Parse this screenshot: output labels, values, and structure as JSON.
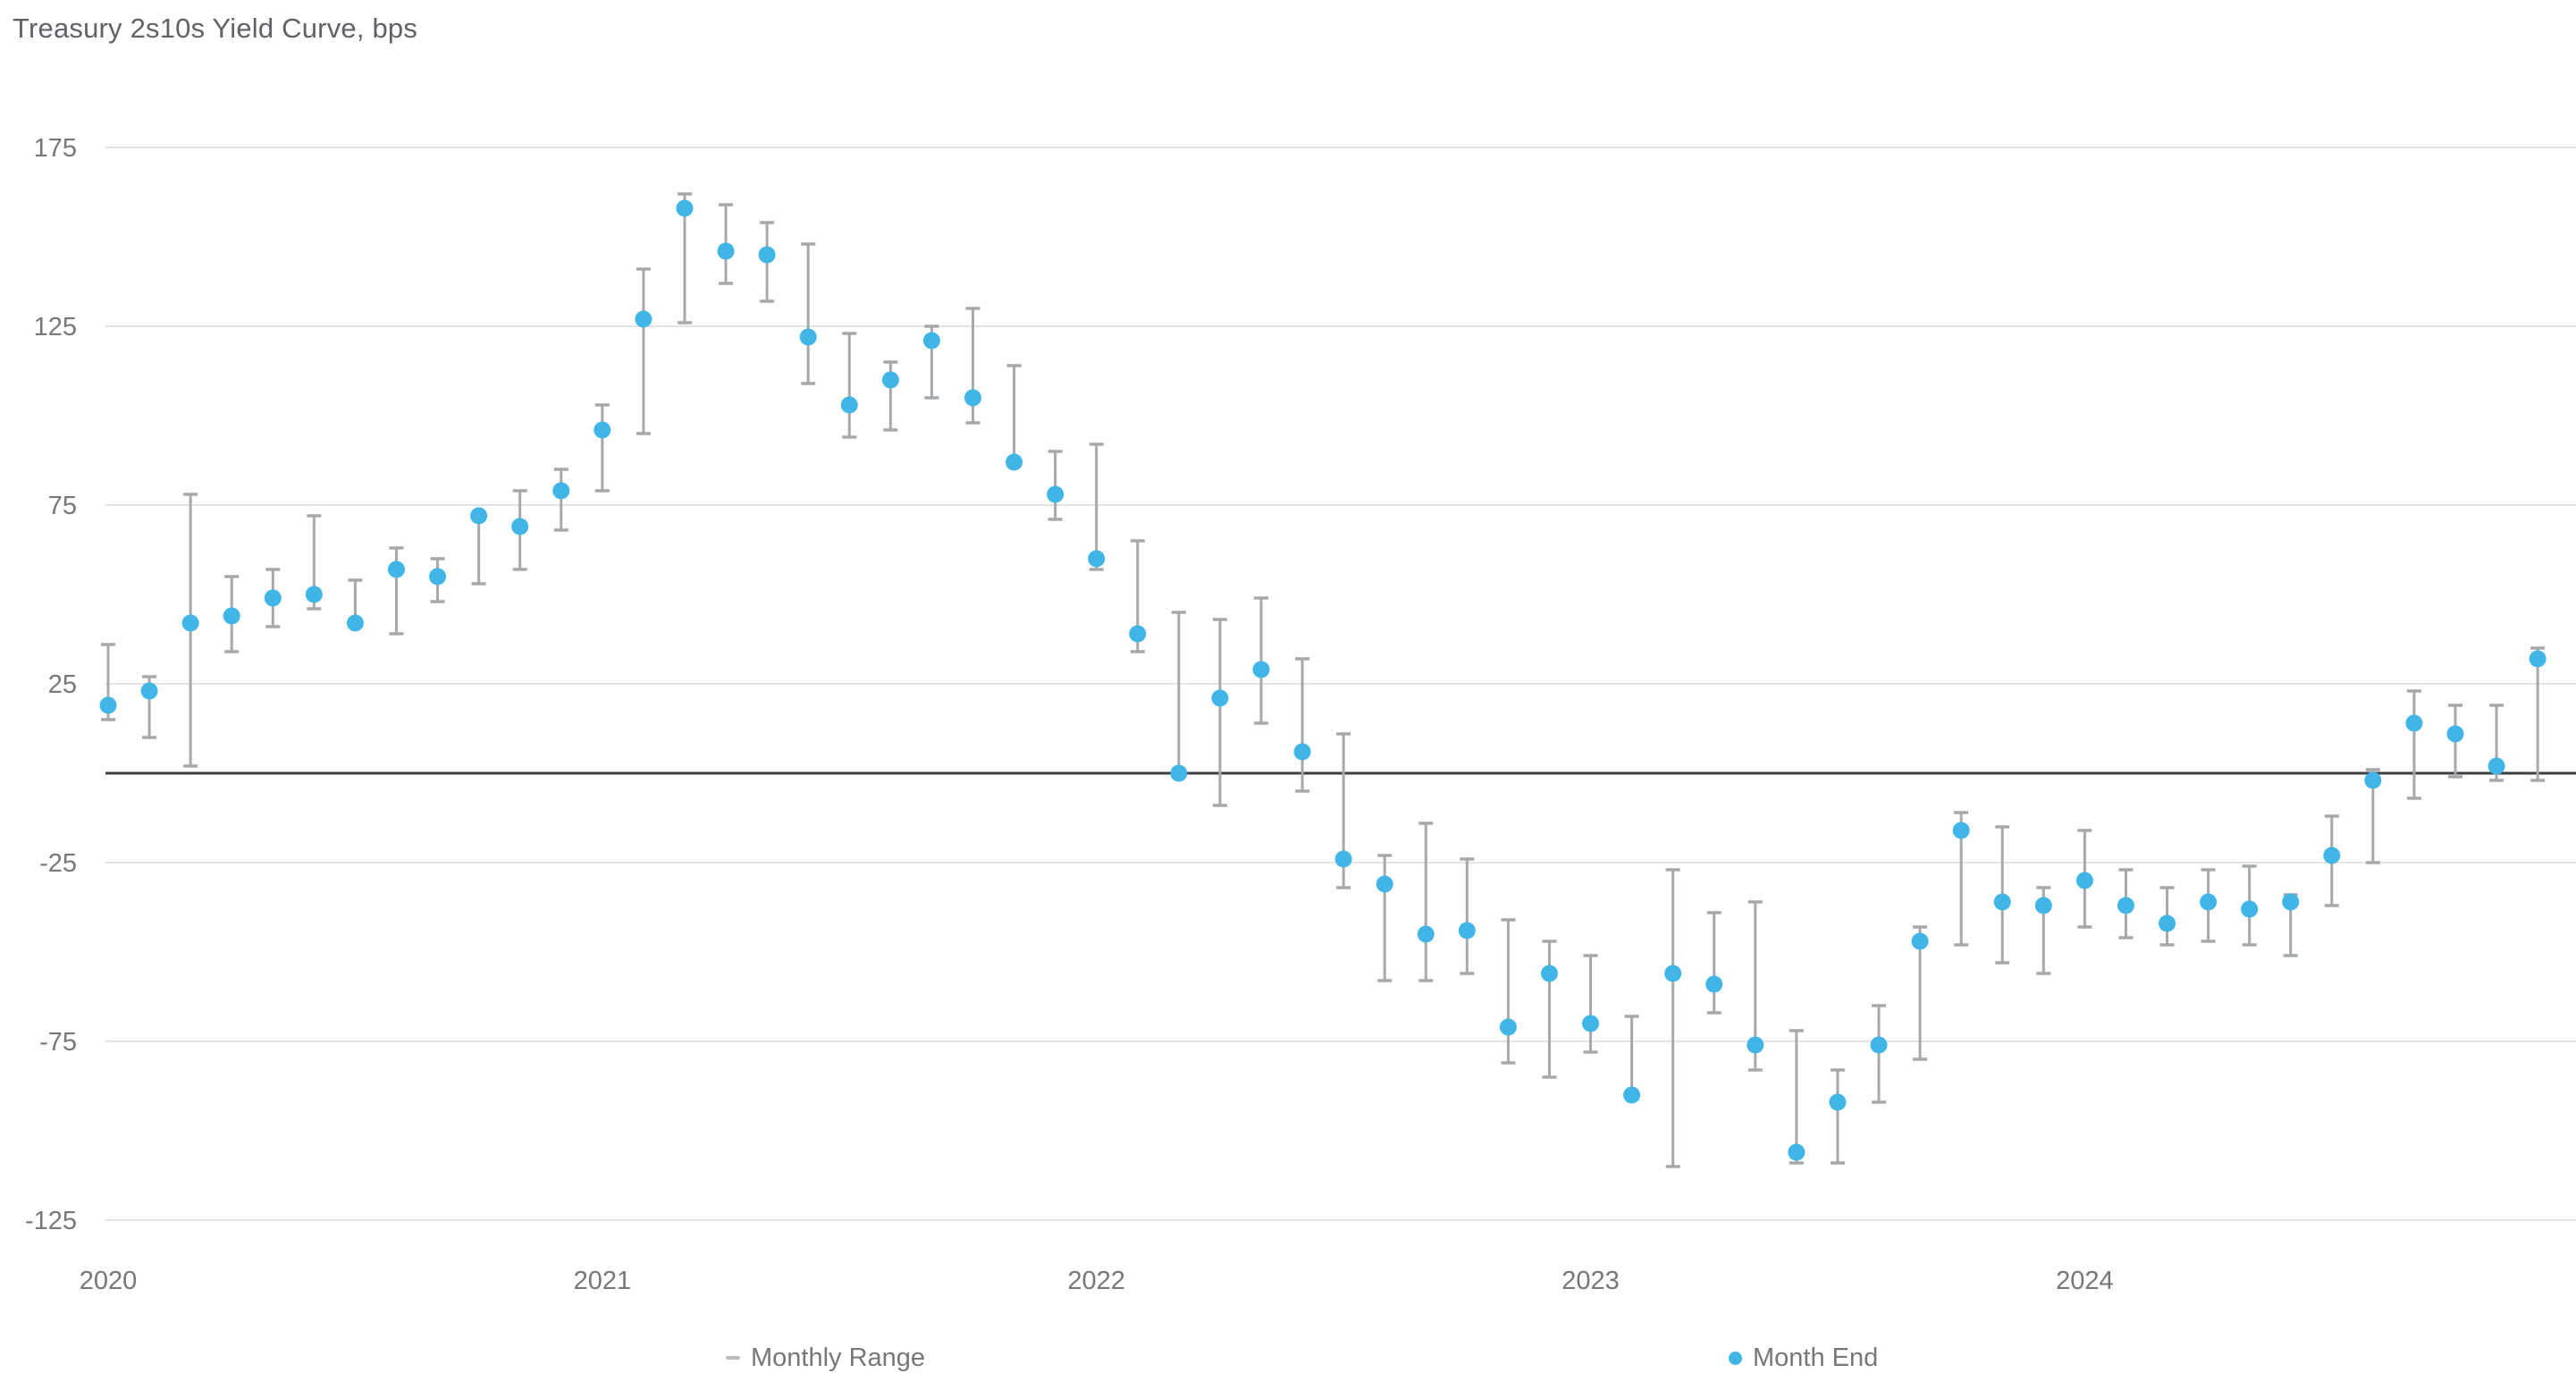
{
  "title": "Treasury 2s10s Yield Curve, bps",
  "legend": {
    "range_label": "Monthly Range",
    "end_label": "Month End"
  },
  "colors": {
    "month_end_dot": "#41b6e6",
    "range_whisker": "#a6a9ab",
    "gridline": "#e4e4e4",
    "zero_line": "#3c3e42",
    "axis_text": "#75787b",
    "title_text": "#5f6368",
    "background": "#ffffff"
  },
  "chart_data": {
    "type": "scatter",
    "style": "monthly-range-whiskers-with-month-end-dots",
    "title": "Treasury 2s10s Yield Curve, bps",
    "xlabel": "",
    "ylabel": "bps",
    "legend_position": "bottom",
    "grid": true,
    "x": [
      "2020-01",
      "2020-02",
      "2020-03",
      "2020-04",
      "2020-05",
      "2020-06",
      "2020-07",
      "2020-08",
      "2020-09",
      "2020-10",
      "2020-11",
      "2020-12",
      "2021-01",
      "2021-02",
      "2021-03",
      "2021-04",
      "2021-05",
      "2021-06",
      "2021-07",
      "2021-08",
      "2021-09",
      "2021-10",
      "2021-11",
      "2021-12",
      "2022-01",
      "2022-02",
      "2022-03",
      "2022-04",
      "2022-05",
      "2022-06",
      "2022-07",
      "2022-08",
      "2022-09",
      "2022-10",
      "2022-11",
      "2022-12",
      "2023-01",
      "2023-02",
      "2023-03",
      "2023-04",
      "2023-05",
      "2023-06",
      "2023-07",
      "2023-08",
      "2023-09",
      "2023-10",
      "2023-11",
      "2023-12",
      "2024-01",
      "2024-02",
      "2024-03",
      "2024-04",
      "2024-05",
      "2024-06",
      "2024-07",
      "2024-08",
      "2024-09",
      "2024-10",
      "2024-11",
      "2024-12"
    ],
    "series": [
      {
        "name": "Monthly Range",
        "marker": "vertical-range-bar",
        "high": [
          36,
          27,
          78,
          55,
          57,
          72,
          54,
          63,
          60,
          72,
          79,
          85,
          103,
          141,
          162,
          159,
          154,
          148,
          123,
          115,
          125,
          130,
          114,
          90,
          92,
          65,
          45,
          43,
          49,
          32,
          11,
          -23,
          -14,
          -24,
          -41,
          -47,
          -51,
          -68,
          -27,
          -39,
          -36,
          -72,
          -83,
          -65,
          -43,
          -11,
          -15,
          -32,
          -16,
          -27,
          -32,
          -27,
          -26,
          -34,
          -12,
          1,
          23,
          19,
          19,
          35
        ],
        "low": [
          15,
          10,
          2,
          34,
          41,
          46,
          41,
          39,
          48,
          53,
          57,
          68,
          79,
          95,
          126,
          137,
          132,
          109,
          94,
          96,
          105,
          98,
          86,
          71,
          57,
          34,
          -1,
          -9,
          14,
          -5,
          -32,
          -58,
          -58,
          -56,
          -81,
          -85,
          -78,
          -91,
          -110,
          -67,
          -83,
          -109,
          -109,
          -92,
          -80,
          -48,
          -53,
          -56,
          -43,
          -46,
          -48,
          -47,
          -48,
          -51,
          -37,
          -25,
          -7,
          -1,
          -2,
          -2
        ]
      },
      {
        "name": "Month End",
        "marker": "dot",
        "values": [
          19,
          23,
          42,
          44,
          49,
          50,
          42,
          57,
          55,
          72,
          69,
          79,
          96,
          127,
          158,
          146,
          145,
          122,
          103,
          110,
          121,
          105,
          87,
          78,
          60,
          39,
          0,
          21,
          29,
          6,
          -24,
          -31,
          -45,
          -44,
          -71,
          -56,
          -70,
          -90,
          -56,
          -59,
          -76,
          -106,
          -92,
          -76,
          -47,
          -16,
          -36,
          -37,
          -30,
          -37,
          -42,
          -36,
          -38,
          -36,
          -23,
          -2,
          14,
          11,
          2,
          32
        ]
      }
    ],
    "y_axis": {
      "ticks": [
        175,
        125,
        75,
        25,
        -25,
        -75,
        -125
      ],
      "range": [
        -125,
        175
      ],
      "zero_line_at": 0
    },
    "x_axis": {
      "tick_labels": [
        "2020",
        "2021",
        "2022",
        "2023",
        "2024"
      ],
      "tick_month_index": [
        0,
        12,
        24,
        36,
        48
      ]
    }
  }
}
